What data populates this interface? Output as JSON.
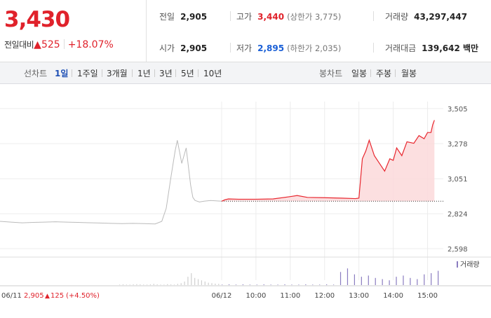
{
  "quote": {
    "price": "3,430",
    "change_label": "전일대비",
    "change_arrow": "▲",
    "change_value": "525",
    "change_percent": "+18.07%"
  },
  "stats": {
    "prev_close": {
      "label": "전일",
      "value": "2,905"
    },
    "open": {
      "label": "시가",
      "value": "2,905"
    },
    "high": {
      "label": "고가",
      "value": "3,440",
      "sub": "(상한가 3,775)"
    },
    "low": {
      "label": "저가",
      "value": "2,895",
      "sub": "(하한가 2,035)"
    },
    "volume": {
      "label": "거래량",
      "value": "43,297,447"
    },
    "trade_amount": {
      "label": "거래대금",
      "value": "139,642 백만"
    }
  },
  "tabs": {
    "line_label": "선차트",
    "line_items": [
      "1일",
      "1주일",
      "3개월",
      "1년",
      "3년",
      "5년",
      "10년"
    ],
    "line_active": "1일",
    "candle_label": "봉차트",
    "candle_items": [
      "일봉",
      "주봉",
      "월봉"
    ]
  },
  "colors": {
    "up": "#e0222b",
    "down": "#1a5fd6",
    "active_tab": "#1f50b5",
    "prev_day_line": "#bbbbbb",
    "today_line": "#e8262e",
    "today_fill": "#fbd9db",
    "volume_prev": "#cfcfcf",
    "volume_today": "#8a7cc0"
  },
  "chart_data": {
    "type": "line",
    "y_ticks": [
      "3,505",
      "3,278",
      "3,051",
      "2,824",
      "2,598"
    ],
    "y_values": [
      3505,
      3278,
      3051,
      2824,
      2598
    ],
    "ylim": [
      2598,
      3505
    ],
    "x_tick_labels": [
      "06/12",
      "10:00",
      "11:00",
      "12:00",
      "13:00",
      "14:00",
      "15:00"
    ],
    "baseline": 2905,
    "volume_legend": "거래량",
    "prev_day": {
      "label": "06/11",
      "close": "2,905",
      "change_arrow": "▲",
      "change": "125",
      "change_percent": "(+4.50%)",
      "series": [
        [
          0,
          2775
        ],
        [
          0.05,
          2770
        ],
        [
          0.1,
          2765
        ],
        [
          0.15,
          2768
        ],
        [
          0.2,
          2770
        ],
        [
          0.25,
          2772
        ],
        [
          0.3,
          2770
        ],
        [
          0.35,
          2768
        ],
        [
          0.4,
          2766
        ],
        [
          0.45,
          2764
        ],
        [
          0.5,
          2762
        ],
        [
          0.55,
          2760
        ],
        [
          0.6,
          2762
        ],
        [
          0.65,
          2760
        ],
        [
          0.7,
          2758
        ],
        [
          0.73,
          2775
        ],
        [
          0.75,
          2860
        ],
        [
          0.77,
          3050
        ],
        [
          0.79,
          3230
        ],
        [
          0.8,
          3300
        ],
        [
          0.82,
          3150
        ],
        [
          0.84,
          3250
        ],
        [
          0.86,
          3010
        ],
        [
          0.87,
          2930
        ],
        [
          0.88,
          2910
        ],
        [
          0.9,
          2900
        ],
        [
          0.92,
          2905
        ],
        [
          0.95,
          2910
        ],
        [
          1.0,
          2905
        ]
      ]
    },
    "today": {
      "series": [
        [
          9.0,
          2905
        ],
        [
          9.1,
          2915
        ],
        [
          9.2,
          2920
        ],
        [
          9.5,
          2918
        ],
        [
          10.0,
          2918
        ],
        [
          10.5,
          2920
        ],
        [
          11.0,
          2935
        ],
        [
          11.2,
          2942
        ],
        [
          11.5,
          2930
        ],
        [
          12.0,
          2928
        ],
        [
          12.5,
          2925
        ],
        [
          12.9,
          2922
        ],
        [
          13.0,
          2925
        ],
        [
          13.1,
          3180
        ],
        [
          13.2,
          3230
        ],
        [
          13.3,
          3300
        ],
        [
          13.45,
          3200
        ],
        [
          13.6,
          3150
        ],
        [
          13.75,
          3100
        ],
        [
          13.9,
          3180
        ],
        [
          14.0,
          3170
        ],
        [
          14.1,
          3250
        ],
        [
          14.25,
          3200
        ],
        [
          14.4,
          3290
        ],
        [
          14.6,
          3280
        ],
        [
          14.75,
          3330
        ],
        [
          14.9,
          3310
        ],
        [
          15.0,
          3350
        ],
        [
          15.1,
          3350
        ],
        [
          15.15,
          3400
        ],
        [
          15.2,
          3430
        ]
      ]
    },
    "volume": {
      "prev_day": [
        0.02,
        0.03,
        0.02,
        0.02,
        0.03,
        0.04,
        0.03,
        0.02,
        0.02,
        0.03,
        0.05,
        0.03,
        0.02,
        0.02,
        0.04,
        0.03,
        0.02,
        0.05,
        0.08,
        0.15,
        0.35,
        0.5,
        0.3,
        0.25,
        0.2,
        0.15,
        0.1,
        0.08,
        0.06,
        0.05
      ],
      "today": [
        0.02,
        0.03,
        0.02,
        0.03,
        0.02,
        0.02,
        0.03,
        0.02,
        0.02,
        0.03,
        0.02,
        0.02,
        0.03,
        0.02,
        0.02,
        0.03,
        0.02,
        0.55,
        0.7,
        0.45,
        0.35,
        0.4,
        0.3,
        0.25,
        0.2,
        0.35,
        0.4,
        0.3,
        0.25,
        0.45,
        0.5,
        0.6
      ]
    }
  }
}
